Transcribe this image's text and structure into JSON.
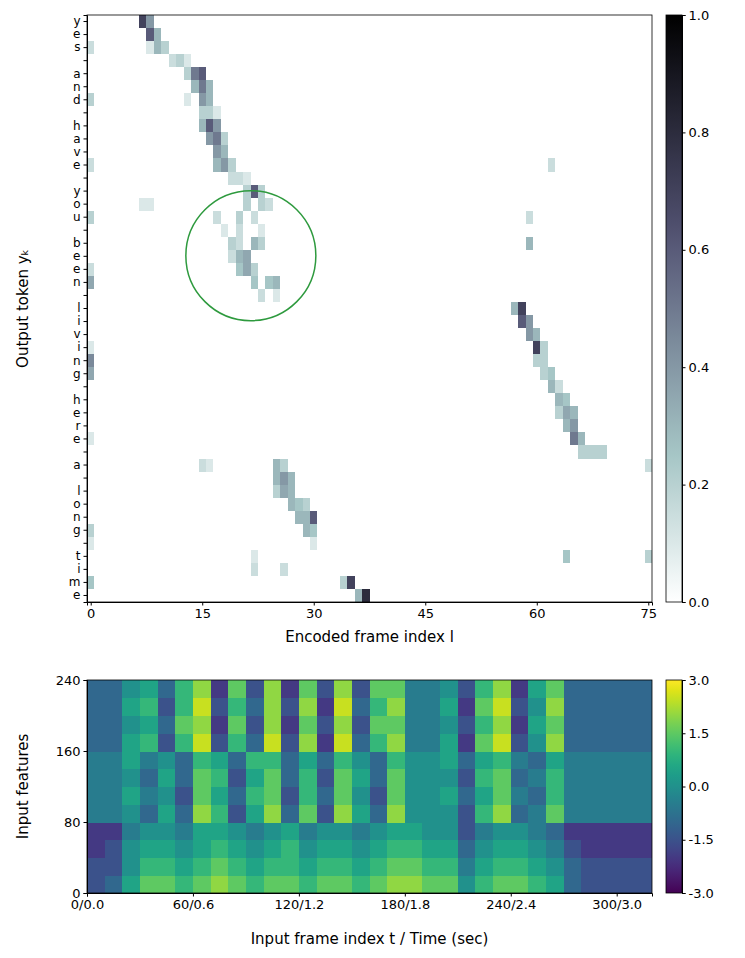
{
  "chart_data": [
    {
      "type": "heatmap",
      "xlabel": "Encoded frame index l",
      "ylabel": "Output token yₖ",
      "categories": [
        "y",
        "e",
        "s",
        null,
        "a",
        "n",
        "d",
        null,
        "h",
        "a",
        "v",
        "e",
        null,
        "y",
        "o",
        "u",
        null,
        "b",
        "e",
        "e",
        "n",
        null,
        "l",
        "i",
        "v",
        "i",
        "n",
        "g",
        null,
        "h",
        "e",
        "r",
        "e",
        null,
        "a",
        null,
        "l",
        "o",
        "n",
        "g",
        null,
        "t",
        "i",
        "m",
        "e"
      ],
      "xlim": [
        -0.5,
        75.5
      ],
      "xticks": [
        0,
        15,
        30,
        45,
        60,
        75
      ],
      "cells": [
        [
          7,
          0,
          0.7
        ],
        [
          8,
          0,
          0.4
        ],
        [
          8,
          1,
          0.6
        ],
        [
          9,
          1,
          0.3
        ],
        [
          0,
          2,
          0.15
        ],
        [
          8,
          2,
          0.1
        ],
        [
          9,
          2,
          0.3
        ],
        [
          10,
          2,
          0.2
        ],
        [
          11,
          3,
          0.15
        ],
        [
          12,
          3,
          0.2
        ],
        [
          13,
          3,
          0.1
        ],
        [
          13,
          4,
          0.2
        ],
        [
          14,
          4,
          0.5
        ],
        [
          15,
          4,
          0.6
        ],
        [
          14,
          5,
          0.3
        ],
        [
          15,
          5,
          0.5
        ],
        [
          16,
          5,
          0.3
        ],
        [
          0,
          6,
          0.2
        ],
        [
          13,
          6,
          0.1
        ],
        [
          15,
          6,
          0.4
        ],
        [
          16,
          6,
          0.3
        ],
        [
          15,
          7,
          0.2
        ],
        [
          16,
          7,
          0.2
        ],
        [
          17,
          7,
          0.1
        ],
        [
          15,
          8,
          0.3
        ],
        [
          16,
          8,
          0.6
        ],
        [
          17,
          8,
          0.4
        ],
        [
          16,
          9,
          0.4
        ],
        [
          17,
          9,
          0.5
        ],
        [
          18,
          9,
          0.2
        ],
        [
          17,
          10,
          0.4
        ],
        [
          18,
          10,
          0.3
        ],
        [
          0,
          11,
          0.15
        ],
        [
          17,
          11,
          0.3
        ],
        [
          18,
          11,
          0.4
        ],
        [
          19,
          11,
          0.2
        ],
        [
          62,
          11,
          0.15
        ],
        [
          19,
          12,
          0.15
        ],
        [
          20,
          12,
          0.15
        ],
        [
          21,
          12,
          0.1
        ],
        [
          21,
          13,
          0.2
        ],
        [
          22,
          13,
          0.6
        ],
        [
          23,
          13,
          0.2
        ],
        [
          7,
          14,
          0.1
        ],
        [
          8,
          14,
          0.1
        ],
        [
          21,
          14,
          0.2
        ],
        [
          23,
          14,
          0.2
        ],
        [
          24,
          14,
          0.15
        ],
        [
          0,
          15,
          0.2
        ],
        [
          17,
          15,
          0.15
        ],
        [
          20,
          15,
          0.2
        ],
        [
          22,
          15,
          0.15
        ],
        [
          59,
          15,
          0.15
        ],
        [
          18,
          16,
          0.1
        ],
        [
          20,
          16,
          0.15
        ],
        [
          23,
          16,
          0.1
        ],
        [
          19,
          17,
          0.2
        ],
        [
          20,
          17,
          0.15
        ],
        [
          22,
          17,
          0.3
        ],
        [
          23,
          17,
          0.2
        ],
        [
          59,
          17,
          0.3
        ],
        [
          19,
          18,
          0.15
        ],
        [
          20,
          18,
          0.3
        ],
        [
          21,
          18,
          0.35
        ],
        [
          0,
          19,
          0.15
        ],
        [
          20,
          19,
          0.25
        ],
        [
          21,
          19,
          0.35
        ],
        [
          22,
          19,
          0.2
        ],
        [
          0,
          20,
          0.35
        ],
        [
          22,
          20,
          0.25
        ],
        [
          24,
          20,
          0.25
        ],
        [
          25,
          20,
          0.3
        ],
        [
          23,
          21,
          0.15
        ],
        [
          25,
          21,
          0.1
        ],
        [
          57,
          22,
          0.3
        ],
        [
          58,
          22,
          0.7
        ],
        [
          58,
          23,
          0.6
        ],
        [
          59,
          23,
          0.4
        ],
        [
          59,
          24,
          0.4
        ],
        [
          60,
          24,
          0.3
        ],
        [
          0,
          25,
          0.1
        ],
        [
          60,
          25,
          0.7
        ],
        [
          61,
          25,
          0.2
        ],
        [
          0,
          26,
          0.45
        ],
        [
          60,
          26,
          0.2
        ],
        [
          61,
          26,
          0.2
        ],
        [
          0,
          27,
          0.35
        ],
        [
          61,
          27,
          0.2
        ],
        [
          62,
          27,
          0.25
        ],
        [
          62,
          28,
          0.3
        ],
        [
          63,
          28,
          0.15
        ],
        [
          63,
          29,
          0.3
        ],
        [
          64,
          29,
          0.25
        ],
        [
          63,
          30,
          0.2
        ],
        [
          64,
          30,
          0.35
        ],
        [
          65,
          30,
          0.3
        ],
        [
          64,
          31,
          0.3
        ],
        [
          65,
          31,
          0.4
        ],
        [
          0,
          32,
          0.1
        ],
        [
          65,
          32,
          0.5
        ],
        [
          66,
          32,
          0.3
        ],
        [
          66,
          33,
          0.2
        ],
        [
          67,
          33,
          0.2
        ],
        [
          68,
          33,
          0.2
        ],
        [
          69,
          33,
          0.2
        ],
        [
          15,
          34,
          0.15
        ],
        [
          16,
          34,
          0.1
        ],
        [
          25,
          34,
          0.3
        ],
        [
          26,
          34,
          0.2
        ],
        [
          75,
          34,
          0.15
        ],
        [
          25,
          35,
          0.3
        ],
        [
          26,
          35,
          0.4
        ],
        [
          27,
          35,
          0.3
        ],
        [
          25,
          36,
          0.2
        ],
        [
          26,
          36,
          0.35
        ],
        [
          27,
          36,
          0.3
        ],
        [
          27,
          37,
          0.3
        ],
        [
          28,
          37,
          0.25
        ],
        [
          29,
          37,
          0.2
        ],
        [
          28,
          38,
          0.3
        ],
        [
          29,
          38,
          0.3
        ],
        [
          30,
          38,
          0.6
        ],
        [
          0,
          39,
          0.2
        ],
        [
          29,
          39,
          0.3
        ],
        [
          30,
          39,
          0.25
        ],
        [
          0,
          40,
          0.1
        ],
        [
          30,
          40,
          0.1
        ],
        [
          22,
          41,
          0.1
        ],
        [
          64,
          41,
          0.25
        ],
        [
          75,
          41,
          0.2
        ],
        [
          22,
          42,
          0.15
        ],
        [
          26,
          42,
          0.15
        ],
        [
          0,
          43,
          0.25
        ],
        [
          34,
          43,
          0.2
        ],
        [
          35,
          43,
          0.7
        ],
        [
          36,
          44,
          0.3
        ],
        [
          37,
          44,
          0.8
        ]
      ],
      "colorbar": {
        "range": [
          0,
          1
        ],
        "ticks": [
          {
            "value": 0,
            "label": "0.0"
          },
          {
            "value": 0.2,
            "label": "0.2"
          },
          {
            "value": 0.4,
            "label": "0.4"
          },
          {
            "value": 0.6,
            "label": "0.6"
          },
          {
            "value": 0.8,
            "label": "0.8"
          },
          {
            "value": 1,
            "label": "1.0"
          }
        ]
      }
    },
    {
      "type": "heatmap",
      "xlabel": "Input frame index t / Time (sec)",
      "ylabel": "Input features",
      "xlim": [
        0,
        320
      ],
      "xticks": [
        {
          "value": 0,
          "label": "0/0.0"
        },
        {
          "value": 60,
          "label": "60/0.6"
        },
        {
          "value": 120,
          "label": "120/1.2"
        },
        {
          "value": 180,
          "label": "180/1.8"
        },
        {
          "value": 240,
          "label": "240/2.4"
        },
        {
          "value": 300,
          "label": "300/3.0"
        }
      ],
      "ylim": [
        0,
        240
      ],
      "yticks": [
        0,
        80,
        160,
        240
      ],
      "x_bins": [
        0,
        10,
        20,
        30,
        40,
        50,
        60,
        70,
        80,
        90,
        100,
        110,
        120,
        130,
        140,
        150,
        160,
        170,
        180,
        190,
        200,
        210,
        220,
        230,
        240,
        250,
        260,
        270,
        280,
        290,
        300,
        310,
        320
      ],
      "y_bins": [
        0,
        20,
        40,
        60,
        80,
        100,
        120,
        140,
        160,
        180,
        200,
        220,
        240
      ],
      "values": [
        [
          -1.5,
          -1,
          0.5,
          1.5,
          1.5,
          1,
          1.5,
          2,
          1.5,
          1,
          1.5,
          1.5,
          1,
          1.5,
          1.5,
          1,
          1.5,
          2,
          2,
          1.5,
          1.5,
          0,
          1,
          1.5,
          1.5,
          1,
          0.5,
          -1,
          -1.5,
          -1.5,
          -1.5,
          -1.5
        ],
        [
          -1.5,
          -1.5,
          0,
          1,
          1,
          0.5,
          1,
          1.5,
          1,
          0.5,
          1,
          1,
          0.5,
          1,
          1,
          0.5,
          1,
          1.5,
          1.5,
          1,
          1,
          -0.5,
          0.5,
          1,
          1,
          0.5,
          0,
          -1,
          -1.5,
          -1.5,
          -1.5,
          -1.5
        ],
        [
          -2,
          -1.5,
          0,
          0.5,
          0.5,
          0,
          0.5,
          1,
          0.5,
          0,
          0.5,
          1,
          0,
          0.5,
          0.5,
          0,
          0.5,
          1,
          1,
          0.5,
          0.5,
          -1,
          0,
          0.5,
          0.5,
          0,
          -0.5,
          -1.5,
          -2,
          -2,
          -2,
          -2
        ],
        [
          -2,
          -2,
          -0.5,
          0,
          0,
          -0.5,
          0.5,
          0.5,
          0,
          -0.5,
          0,
          0.5,
          -0.5,
          0,
          0,
          -0.5,
          0,
          0.5,
          0.5,
          0,
          0,
          -1.5,
          -0.5,
          0,
          0,
          -0.5,
          -1,
          -2,
          -2,
          -2,
          -2,
          -2
        ],
        [
          -0.5,
          -0.5,
          0,
          -1,
          0.5,
          -1,
          2,
          1,
          -1.5,
          0.5,
          2,
          -1,
          1.5,
          -1.5,
          2,
          0.5,
          -1,
          2,
          0,
          0,
          0,
          -1.5,
          1,
          2,
          -1,
          -0.5,
          1.5,
          -0.5,
          -0.5,
          -0.5,
          -0.5,
          -0.5
        ],
        [
          -0.5,
          -0.5,
          0.5,
          -0.5,
          0,
          -1.5,
          1.5,
          0.5,
          -1,
          1,
          1.5,
          -1.5,
          1,
          -1,
          1.5,
          0,
          -1.5,
          1.5,
          0,
          0,
          0.5,
          -1,
          0.5,
          1.5,
          -0.5,
          -1,
          1,
          -0.5,
          -0.5,
          -0.5,
          -0.5,
          -0.5
        ],
        [
          -0.5,
          -0.5,
          0,
          -1,
          0.5,
          -1,
          1.5,
          1,
          -1.5,
          0.5,
          1.5,
          -1,
          1,
          -1.5,
          1.5,
          0.5,
          -1,
          1.5,
          0,
          0,
          0,
          -1.5,
          1,
          1.5,
          -1,
          -0.5,
          1,
          -0.5,
          -0.5,
          -0.5,
          -0.5,
          -0.5
        ],
        [
          -0.5,
          -0.5,
          0.5,
          -0.5,
          0,
          -1,
          1,
          0.5,
          -1,
          1,
          1,
          -1,
          0.5,
          -1,
          1,
          0,
          -1,
          1,
          0,
          0,
          0.5,
          -1,
          0.5,
          1,
          -0.5,
          -1,
          0.5,
          -0.5,
          -0.5,
          -0.5,
          -0.5,
          -0.5
        ],
        [
          -1,
          -1,
          0.5,
          1,
          -1.5,
          1,
          2.5,
          -1.5,
          1,
          -1,
          2.5,
          -1.5,
          2,
          -2,
          2.5,
          -1,
          1,
          2,
          -0.5,
          -0.5,
          0.5,
          -2,
          1.5,
          2.5,
          -1.5,
          0,
          2,
          -1,
          -1,
          -1,
          -1,
          -1
        ],
        [
          -1,
          -1,
          0,
          0.5,
          -1,
          1.5,
          2,
          -2,
          1.5,
          -1.5,
          2,
          -2,
          1.5,
          -1.5,
          2,
          -1.5,
          1.5,
          1.5,
          -0.5,
          -0.5,
          0,
          -1.5,
          1,
          2,
          -2,
          0.5,
          1.5,
          -1,
          -1,
          -1,
          -1,
          -1
        ],
        [
          -1,
          -1,
          0.5,
          1,
          -1.5,
          1,
          2.5,
          -1.5,
          1,
          -1,
          2,
          -1.5,
          2,
          -2,
          2.5,
          -1,
          1,
          2,
          -0.5,
          -0.5,
          0.5,
          -2,
          1.5,
          2.5,
          -1.5,
          0,
          2,
          -1,
          -1,
          -1,
          -1,
          -1
        ],
        [
          -1,
          -1,
          0,
          0.5,
          -1,
          1,
          2,
          -2,
          1.5,
          -1.5,
          2,
          -2,
          1.5,
          -1.5,
          2,
          -1.5,
          1.5,
          1.5,
          -0.5,
          -0.5,
          0,
          -1.5,
          1,
          2,
          -2,
          0.5,
          1.5,
          -1,
          -1,
          -1,
          -1,
          -1
        ]
      ],
      "colorbar": {
        "range": [
          -3,
          3
        ],
        "ticks": [
          {
            "value": -3,
            "label": "-3.0"
          },
          {
            "value": -1.5,
            "label": "-1.5"
          },
          {
            "value": 0,
            "label": "0.0"
          },
          {
            "value": 1.5,
            "label": "1.5"
          },
          {
            "value": 3,
            "label": "3.0"
          }
        ]
      }
    }
  ]
}
